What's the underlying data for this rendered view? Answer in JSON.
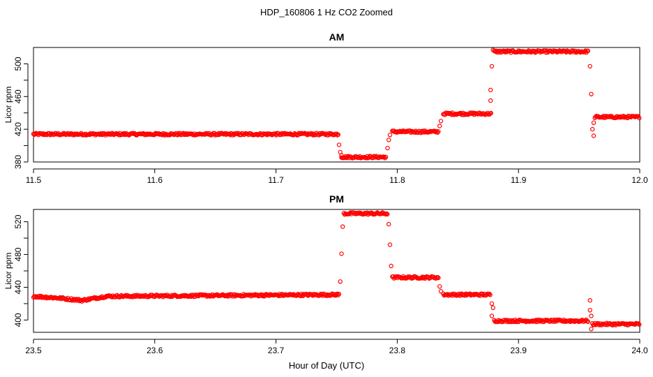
{
  "figure": {
    "title": "HDP_160806  1 Hz CO2 Zoomed",
    "xlabel": "Hour of Day (UTC)"
  },
  "chart_data": [
    {
      "type": "scatter",
      "title": "AM",
      "ylabel": "Licor ppm",
      "xlim": [
        11.5,
        12.0
      ],
      "ylim": [
        380,
        520
      ],
      "xticks": [
        11.5,
        11.6,
        11.7,
        11.8,
        11.9,
        12.0
      ],
      "xtick_labels": [
        "11.5",
        "11.6",
        "11.7",
        "11.8",
        "11.9",
        "12.0"
      ],
      "yticks": [
        380,
        420,
        460,
        500
      ],
      "ytick_labels": [
        "380",
        "420",
        "460",
        "500"
      ],
      "grid": false,
      "color": "#ff0000",
      "marker": "open-circle",
      "segments": [
        {
          "x": [
            11.5,
            11.752
          ],
          "y": [
            414,
            414
          ]
        },
        {
          "x": [
            11.754,
            11.791
          ],
          "y": [
            386,
            386
          ]
        },
        {
          "x": [
            11.796,
            11.834
          ],
          "y": [
            417,
            417
          ]
        },
        {
          "x": [
            11.838,
            11.878
          ],
          "y": [
            439,
            439
          ]
        },
        {
          "x": [
            11.88,
            11.958
          ],
          "y": [
            515,
            515
          ]
        },
        {
          "x": [
            11.963,
            12.0
          ],
          "y": [
            435,
            435
          ]
        }
      ],
      "transition_points": {
        "x": [
          11.752,
          11.753,
          11.754,
          11.792,
          11.793,
          11.794,
          11.835,
          11.836,
          11.877,
          11.877,
          11.878,
          11.879,
          11.959,
          11.96,
          11.961,
          11.962,
          11.962
        ],
        "y": [
          401,
          392,
          388,
          397,
          407,
          413,
          424,
          430,
          455,
          468,
          497,
          517,
          497,
          463,
          420,
          412,
          428
        ]
      }
    },
    {
      "type": "scatter",
      "title": "PM",
      "ylabel": "Licor ppm",
      "xlim": [
        23.5,
        24.0
      ],
      "ylim": [
        385,
        535
      ],
      "xticks": [
        23.5,
        23.6,
        23.7,
        23.8,
        23.9,
        24.0
      ],
      "xtick_labels": [
        "23.5",
        "23.6",
        "23.7",
        "23.8",
        "23.9",
        "24.0"
      ],
      "yticks": [
        400,
        440,
        480,
        520
      ],
      "ytick_labels": [
        "400",
        "440",
        "480",
        "520"
      ],
      "grid": false,
      "color": "#ff0000",
      "marker": "open-circle",
      "segments": [
        {
          "x": [
            23.5,
            23.52
          ],
          "y": [
            429,
            427
          ]
        },
        {
          "x": [
            23.52,
            23.54
          ],
          "y": [
            427,
            424
          ]
        },
        {
          "x": [
            23.54,
            23.56
          ],
          "y": [
            424,
            429
          ]
        },
        {
          "x": [
            23.56,
            23.752
          ],
          "y": [
            429,
            431
          ]
        },
        {
          "x": [
            23.756,
            23.792
          ],
          "y": [
            530,
            530
          ]
        },
        {
          "x": [
            23.796,
            23.834
          ],
          "y": [
            452,
            452
          ]
        },
        {
          "x": [
            23.838,
            23.877
          ],
          "y": [
            431,
            431
          ]
        },
        {
          "x": [
            23.88,
            23.958
          ],
          "y": [
            399,
            399
          ]
        },
        {
          "x": [
            23.961,
            24.0
          ],
          "y": [
            395,
            395
          ]
        }
      ],
      "transition_points": {
        "x": [
          23.753,
          23.754,
          23.755,
          23.793,
          23.794,
          23.795,
          23.835,
          23.836,
          23.878,
          23.878,
          23.879,
          23.959,
          23.959,
          23.96,
          23.96
        ],
        "y": [
          447,
          481,
          514,
          517,
          492,
          466,
          441,
          435,
          420,
          405,
          415,
          424,
          412,
          405,
          389
        ]
      }
    }
  ]
}
